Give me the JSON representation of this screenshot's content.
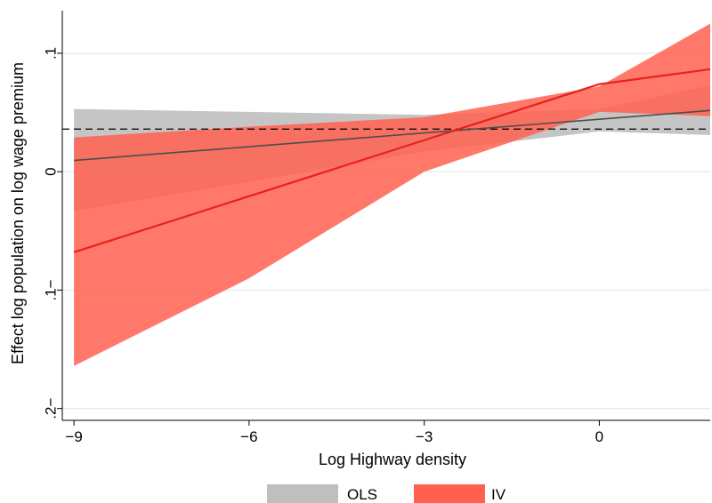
{
  "chart_data": {
    "type": "line",
    "xlabel": "Log Highway density",
    "ylabel": "Effect log population on log wage premium",
    "xlim": [
      -9.2,
      1.9
    ],
    "ylim": [
      -0.21,
      0.136
    ],
    "x_ticks": [
      -9,
      -6,
      -3,
      0
    ],
    "x_tick_labels": [
      "−9",
      "−6",
      "−3",
      "0"
    ],
    "y_ticks": [
      -0.2,
      -0.1,
      0,
      0.1
    ],
    "y_tick_labels": [
      ".2−",
      ".1−",
      "0",
      ".1"
    ],
    "grid": "horizontal",
    "reference_line": {
      "y": 0.036,
      "style": "dashed"
    },
    "legend_position": "bottom-center",
    "series": [
      {
        "name": "OLS",
        "color": "#4d4d4d",
        "band_color": "#bfbfbf",
        "x": [
          -9,
          -6,
          -3,
          0,
          1.9
        ],
        "y": [
          0.0095,
          0.0211,
          0.0327,
          0.0443,
          0.0517
        ],
        "upper": [
          0.053,
          0.0505,
          0.048,
          0.053,
          0.073
        ],
        "lower": [
          -0.033,
          -0.0085,
          0.017,
          0.034,
          0.031
        ]
      },
      {
        "name": "IV",
        "color": "#e8221a",
        "band_color": "#ff6050",
        "x": [
          -9,
          -6,
          -3,
          0,
          1.9
        ],
        "y": [
          -0.068,
          -0.0207,
          0.0266,
          0.0739,
          0.0865
        ],
        "upper": [
          0.029,
          0.038,
          0.046,
          0.072,
          0.125
        ],
        "lower": [
          -0.164,
          -0.09,
          0.0,
          0.0505,
          0.047
        ]
      }
    ],
    "legend": [
      {
        "label": "OLS",
        "color": "#bfbfbf"
      },
      {
        "label": "IV",
        "color": "#ff6050"
      }
    ]
  }
}
